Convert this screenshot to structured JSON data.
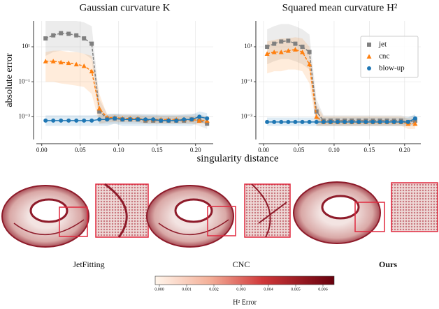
{
  "chart_data": [
    {
      "type": "line",
      "title": "Gaussian curvature K",
      "ylabel": "absolute error",
      "xlabel": "singularity distance",
      "log_y": true,
      "grid": true,
      "xlim": [
        -0.007,
        0.223
      ],
      "ylim": [
        5e-05,
        300
      ],
      "xticks": [
        {
          "value": 0,
          "label": "0.00"
        },
        {
          "value": 0.05,
          "label": "0.05"
        },
        {
          "value": 0.1,
          "label": "0.10"
        },
        {
          "value": 0.15,
          "label": "0.15"
        },
        {
          "value": 0.2,
          "label": "0.20"
        }
      ],
      "yticks": [
        {
          "value": 0.001,
          "label": "10⁻³"
        },
        {
          "value": 0.1,
          "label": "10⁻¹"
        },
        {
          "value": 10,
          "label": "10¹"
        }
      ],
      "x": [
        0.005,
        0.015,
        0.025,
        0.035,
        0.045,
        0.055,
        0.065,
        0.075,
        0.085,
        0.095,
        0.105,
        0.115,
        0.125,
        0.135,
        0.145,
        0.155,
        0.165,
        0.175,
        0.185,
        0.195,
        0.205,
        0.215
      ],
      "series": [
        {
          "name": "jet",
          "color": "#808080",
          "marker": "square",
          "linestyle": "dashed",
          "values": [
            30,
            45,
            60,
            55,
            45,
            30,
            15,
            0.002,
            0.0008,
            0.0008,
            0.0007,
            0.0007,
            0.0007,
            0.0006,
            0.0006,
            0.0006,
            0.0006,
            0.0006,
            0.0006,
            0.0007,
            0.0006,
            0.0004
          ],
          "band_lower": [
            3,
            5,
            6,
            6,
            5,
            4,
            2,
            0.0004,
            0.0004,
            0.0004,
            0.0004,
            0.0004,
            0.0004,
            0.0004,
            0.0004,
            0.0004,
            0.0004,
            0.0004,
            0.0004,
            0.0004,
            0.0003,
            0.0002
          ],
          "band_upper": [
            300,
            300,
            300,
            300,
            300,
            250,
            150,
            0.01,
            0.0015,
            0.0015,
            0.0015,
            0.0015,
            0.0015,
            0.0014,
            0.0014,
            0.0014,
            0.0014,
            0.0014,
            0.0014,
            0.0015,
            0.0014,
            0.001
          ]
        },
        {
          "name": "cnc",
          "color": "#ff7f0e",
          "marker": "triangle",
          "linestyle": "dashed",
          "values": [
            1.5,
            1.5,
            1.3,
            1.2,
            1.0,
            0.8,
            0.4,
            0.003,
            0.0009,
            0.0009,
            0.0008,
            0.0008,
            0.0008,
            0.0007,
            0.0007,
            0.0007,
            0.0007,
            0.0007,
            0.0007,
            0.0007,
            0.0006,
            0.0006
          ],
          "band_lower": [
            0.1,
            0.1,
            0.08,
            0.07,
            0.06,
            0.05,
            0.02,
            0.0004,
            0.0005,
            0.0005,
            0.0005,
            0.0005,
            0.0005,
            0.0004,
            0.0004,
            0.0004,
            0.0004,
            0.0004,
            0.0004,
            0.0004,
            0.0004,
            0.0004
          ],
          "band_upper": [
            5,
            6,
            6,
            5,
            5,
            4,
            3,
            0.02,
            0.0013,
            0.0013,
            0.0012,
            0.0012,
            0.0012,
            0.0011,
            0.0011,
            0.0011,
            0.0011,
            0.0011,
            0.0011,
            0.0011,
            0.001,
            0.001
          ]
        },
        {
          "name": "blow-up",
          "color": "#1f77b4",
          "marker": "circle",
          "linestyle": "solid",
          "values": [
            0.0006,
            0.0006,
            0.0006,
            0.0006,
            0.0006,
            0.0006,
            0.0006,
            0.0007,
            0.0007,
            0.0008,
            0.0007,
            0.0007,
            0.0007,
            0.0007,
            0.0007,
            0.0006,
            0.0006,
            0.0006,
            0.0007,
            0.0007,
            0.001,
            0.0008
          ],
          "band_lower": [
            0.0003,
            0.0003,
            0.0003,
            0.0003,
            0.0003,
            0.0003,
            0.0003,
            0.0003,
            0.0003,
            0.0004,
            0.0003,
            0.0003,
            0.0003,
            0.0003,
            0.0003,
            0.0003,
            0.0003,
            0.0003,
            0.0003,
            0.0003,
            0.0005,
            0.0004
          ],
          "band_upper": [
            0.0012,
            0.0012,
            0.0012,
            0.0012,
            0.0012,
            0.0012,
            0.0012,
            0.0013,
            0.0013,
            0.0015,
            0.0013,
            0.0013,
            0.0013,
            0.0013,
            0.0013,
            0.0012,
            0.0012,
            0.0012,
            0.0013,
            0.0013,
            0.002,
            0.0016
          ]
        }
      ]
    },
    {
      "type": "line",
      "title": "Squared mean curvature H²",
      "log_y": true,
      "grid": true,
      "legend": "upper right",
      "xlim": [
        -0.007,
        0.223
      ],
      "ylim": [
        5e-05,
        300
      ],
      "xticks": [
        {
          "value": 0,
          "label": "0.00"
        },
        {
          "value": 0.05,
          "label": "0.05"
        },
        {
          "value": 0.1,
          "label": "0.10"
        },
        {
          "value": 0.15,
          "label": "0.15"
        },
        {
          "value": 0.2,
          "label": "0.20"
        }
      ],
      "yticks": [
        {
          "value": 0.001,
          "label": "10⁻³"
        },
        {
          "value": 0.1,
          "label": "10⁻¹"
        },
        {
          "value": 10,
          "label": "10¹"
        }
      ],
      "x": [
        0.005,
        0.015,
        0.025,
        0.035,
        0.045,
        0.055,
        0.065,
        0.075,
        0.085,
        0.095,
        0.105,
        0.115,
        0.125,
        0.135,
        0.145,
        0.155,
        0.165,
        0.175,
        0.185,
        0.195,
        0.205,
        0.215
      ],
      "series": [
        {
          "name": "jet",
          "color": "#808080",
          "marker": "square",
          "linestyle": "dashed",
          "values": [
            10,
            15,
            20,
            22,
            15,
            10,
            5,
            0.002,
            0.0006,
            0.0006,
            0.0006,
            0.0006,
            0.0006,
            0.0006,
            0.0006,
            0.0006,
            0.0006,
            0.0006,
            0.0006,
            0.0006,
            0.0005,
            0.0006
          ],
          "band_lower": [
            1,
            1.5,
            2,
            2,
            1.5,
            1,
            0.5,
            0.0003,
            0.0003,
            0.0003,
            0.0003,
            0.0003,
            0.0003,
            0.0003,
            0.0003,
            0.0003,
            0.0003,
            0.0003,
            0.0003,
            0.0003,
            0.0003,
            0.0003
          ],
          "band_upper": [
            100,
            150,
            200,
            200,
            150,
            100,
            50,
            0.01,
            0.0012,
            0.0012,
            0.0012,
            0.0012,
            0.0012,
            0.0012,
            0.0012,
            0.0012,
            0.0012,
            0.0012,
            0.0012,
            0.0012,
            0.001,
            0.0012
          ]
        },
        {
          "name": "cnc",
          "color": "#ff7f0e",
          "marker": "triangle",
          "linestyle": "dashed",
          "values": [
            4,
            5,
            5,
            6,
            7,
            5,
            1,
            0.001,
            0.0005,
            0.0005,
            0.0005,
            0.0005,
            0.0005,
            0.0005,
            0.0005,
            0.0005,
            0.0005,
            0.0005,
            0.0005,
            0.0005,
            0.0004,
            0.0004
          ],
          "band_lower": [
            0.3,
            0.4,
            0.4,
            0.5,
            0.5,
            0.4,
            0.08,
            0.0003,
            0.0003,
            0.0003,
            0.0003,
            0.0003,
            0.0003,
            0.0003,
            0.0003,
            0.0003,
            0.0003,
            0.0003,
            0.0003,
            0.0003,
            0.0002,
            0.0002
          ],
          "band_upper": [
            20,
            25,
            30,
            30,
            35,
            30,
            10,
            0.005,
            0.001,
            0.001,
            0.001,
            0.001,
            0.001,
            0.001,
            0.001,
            0.001,
            0.001,
            0.001,
            0.001,
            0.001,
            0.0008,
            0.0008
          ]
        },
        {
          "name": "blow-up",
          "color": "#1f77b4",
          "marker": "circle",
          "linestyle": "solid",
          "values": [
            0.0005,
            0.0005,
            0.0005,
            0.0005,
            0.0005,
            0.0005,
            0.0005,
            0.0005,
            0.0005,
            0.0005,
            0.0005,
            0.0005,
            0.0005,
            0.0005,
            0.0005,
            0.0005,
            0.0005,
            0.0005,
            0.0005,
            0.0005,
            0.0005,
            0.0008
          ],
          "band_lower": [
            0.0003,
            0.0003,
            0.0003,
            0.0003,
            0.0003,
            0.0003,
            0.0003,
            0.0003,
            0.0003,
            0.0003,
            0.0003,
            0.0003,
            0.0003,
            0.0003,
            0.0003,
            0.0003,
            0.0003,
            0.0003,
            0.0003,
            0.0003,
            0.0003,
            0.0004
          ],
          "band_upper": [
            0.0009,
            0.0009,
            0.0009,
            0.0009,
            0.0009,
            0.0009,
            0.0009,
            0.0009,
            0.0009,
            0.0009,
            0.0009,
            0.0009,
            0.0009,
            0.0009,
            0.0009,
            0.0009,
            0.0009,
            0.0009,
            0.0009,
            0.0009,
            0.0009,
            0.0014
          ]
        }
      ]
    }
  ],
  "renderings": {
    "labels": [
      "JetFitting",
      "CNC",
      "Ours"
    ]
  },
  "colorbar": {
    "tick_labels": [
      "0.000",
      "0.001",
      "0.002",
      "0.003",
      "0.004",
      "0.005",
      "0.006"
    ],
    "label": "H² Error"
  }
}
